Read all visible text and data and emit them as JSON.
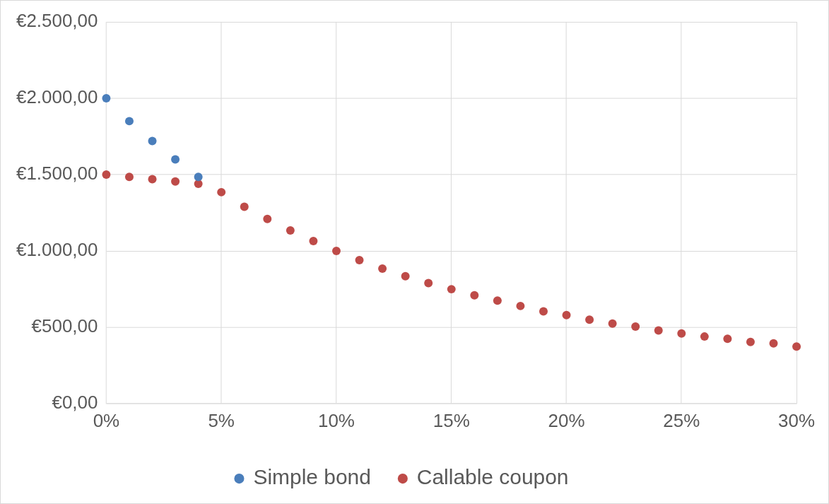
{
  "chart_data": {
    "type": "scatter",
    "marker": "circle",
    "grid": true,
    "legend": "bottom",
    "xlim": [
      0,
      30
    ],
    "ylim": [
      0,
      2500
    ],
    "xticks": [
      {
        "value": 0,
        "label": "0%"
      },
      {
        "value": 5,
        "label": "5%"
      },
      {
        "value": 10,
        "label": "10%"
      },
      {
        "value": 15,
        "label": "15%"
      },
      {
        "value": 20,
        "label": "20%"
      },
      {
        "value": 25,
        "label": "25%"
      },
      {
        "value": 30,
        "label": "30%"
      }
    ],
    "yticks": [
      {
        "value": 0,
        "label": "€0,00"
      },
      {
        "value": 500,
        "label": "€500,00"
      },
      {
        "value": 1000,
        "label": "€1.000,00"
      },
      {
        "value": 1500,
        "label": "€1.500,00"
      },
      {
        "value": 2000,
        "label": "€2.000,00"
      },
      {
        "value": 2500,
        "label": "€2.500,00"
      }
    ],
    "series": [
      {
        "name": "Simple bond",
        "color": "#4a7ebb",
        "x": [
          0,
          1,
          2,
          3,
          4
        ],
        "values": [
          2000,
          1850,
          1720,
          1600,
          1485
        ]
      },
      {
        "name": "Callable coupon",
        "color": "#be4b48",
        "x": [
          0,
          1,
          2,
          3,
          4,
          5,
          6,
          7,
          8,
          9,
          10,
          11,
          12,
          13,
          14,
          15,
          16,
          17,
          18,
          19,
          20,
          21,
          22,
          23,
          24,
          25,
          26,
          27,
          28,
          29,
          30
        ],
        "values": [
          1500,
          1485,
          1470,
          1455,
          1440,
          1385,
          1290,
          1210,
          1135,
          1065,
          1000,
          940,
          885,
          835,
          790,
          750,
          710,
          675,
          640,
          605,
          580,
          550,
          525,
          505,
          480,
          460,
          440,
          425,
          405,
          395,
          375
        ]
      }
    ]
  }
}
